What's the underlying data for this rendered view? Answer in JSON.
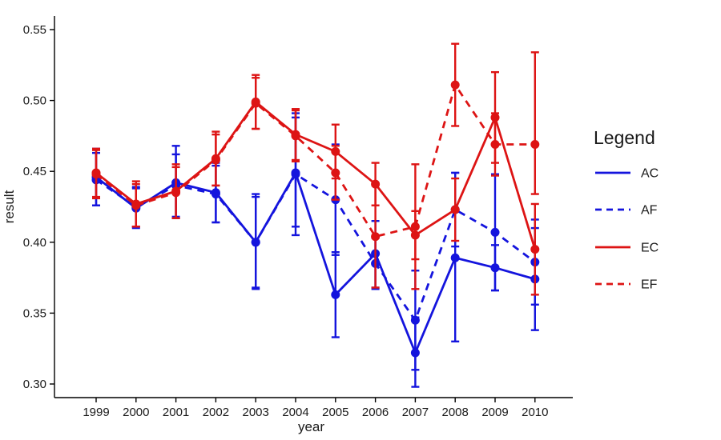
{
  "chart_data": {
    "type": "line",
    "title": "",
    "xlabel": "year",
    "ylabel": "result",
    "categories": [
      1999,
      2000,
      2001,
      2002,
      2003,
      2004,
      2005,
      2006,
      2007,
      2008,
      2009,
      2010
    ],
    "ylim": [
      0.3,
      0.55
    ],
    "yticks": [
      0.3,
      0.35,
      0.4,
      0.45,
      0.5,
      0.55
    ],
    "grid": false,
    "legend": {
      "title": "Legend",
      "position": "right",
      "entries": [
        "AC",
        "AF",
        "EC",
        "EF"
      ]
    },
    "colors": {
      "blue": "#1414dd",
      "red": "#dd1414",
      "axis": "#000000",
      "text": "#1a1a1a"
    },
    "series": [
      {
        "name": "AC",
        "color_key": "blue",
        "linetype": "solid",
        "values": [
          0.446,
          0.424,
          0.442,
          0.435,
          0.4,
          0.449,
          0.363,
          0.392,
          0.322,
          0.389,
          0.382,
          0.374
        ],
        "ymin": [
          0.426,
          0.41,
          0.417,
          0.414,
          0.367,
          0.411,
          0.333,
          0.368,
          0.298,
          0.33,
          0.366,
          0.338
        ],
        "ymax": [
          0.466,
          0.438,
          0.468,
          0.456,
          0.434,
          0.488,
          0.393,
          0.415,
          0.347,
          0.449,
          0.398,
          0.41
        ]
      },
      {
        "name": "AF",
        "color_key": "blue",
        "linetype": "dashed",
        "values": [
          0.444,
          0.425,
          0.44,
          0.434,
          0.4,
          0.448,
          0.43,
          0.385,
          0.345,
          0.423,
          0.407,
          0.386
        ],
        "ymin": [
          0.426,
          0.411,
          0.418,
          0.414,
          0.368,
          0.405,
          0.391,
          0.367,
          0.31,
          0.397,
          0.366,
          0.356
        ],
        "ymax": [
          0.463,
          0.439,
          0.462,
          0.454,
          0.432,
          0.491,
          0.469,
          0.403,
          0.38,
          0.449,
          0.448,
          0.416
        ]
      },
      {
        "name": "EC",
        "color_key": "red",
        "linetype": "solid",
        "values": [
          0.449,
          0.427,
          0.436,
          0.459,
          0.499,
          0.476,
          0.464,
          0.441,
          0.405,
          0.423,
          0.488,
          0.395
        ],
        "ymin": [
          0.432,
          0.411,
          0.417,
          0.44,
          0.48,
          0.458,
          0.445,
          0.426,
          0.388,
          0.401,
          0.456,
          0.363
        ],
        "ymax": [
          0.466,
          0.443,
          0.455,
          0.478,
          0.518,
          0.494,
          0.483,
          0.456,
          0.422,
          0.445,
          0.52,
          0.427
        ]
      },
      {
        "name": "EF",
        "color_key": "red",
        "linetype": "dashed",
        "values": [
          0.448,
          0.426,
          0.435,
          0.458,
          0.498,
          0.475,
          0.449,
          0.404,
          0.411,
          0.511,
          0.469,
          0.469
        ],
        "ymin": [
          0.431,
          0.411,
          0.417,
          0.44,
          0.48,
          0.457,
          0.43,
          0.368,
          0.367,
          0.482,
          0.447,
          0.434
        ],
        "ymax": [
          0.465,
          0.441,
          0.453,
          0.476,
          0.516,
          0.493,
          0.468,
          0.44,
          0.455,
          0.54,
          0.491,
          0.534
        ]
      }
    ]
  }
}
